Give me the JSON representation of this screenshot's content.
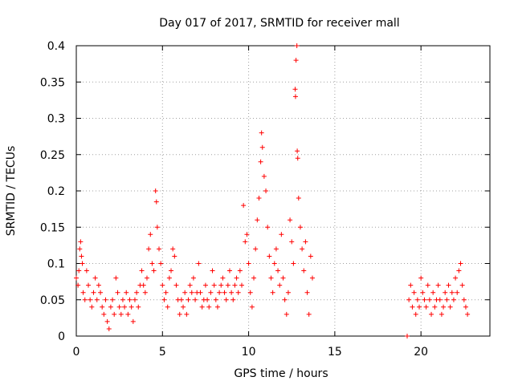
{
  "chart_data": {
    "type": "scatter",
    "title": "Day 017 of 2017, SRMTID for receiver mall",
    "xlabel": "GPS time / hours",
    "ylabel": "SRMTID / TECUs",
    "xlim": [
      0,
      24
    ],
    "ylim": [
      0,
      0.4
    ],
    "x_ticks": [
      0,
      5,
      10,
      15,
      20
    ],
    "y_ticks": [
      0,
      0.05,
      0.1,
      0.15,
      0.2,
      0.25,
      0.3,
      0.35,
      0.4
    ],
    "x_tick_labels": [
      "0",
      "5",
      "10",
      "15",
      "20"
    ],
    "y_tick_labels": [
      "0",
      "0.05",
      "0.1",
      "0.15",
      "0.2",
      "0.25",
      "0.3",
      "0.35",
      "0.4"
    ],
    "grid": true,
    "marker": "+",
    "color": "#ff0000",
    "series": [
      {
        "name": "SRMTID",
        "points": [
          [
            0.0,
            0.08
          ],
          [
            0.1,
            0.07
          ],
          [
            0.15,
            0.09
          ],
          [
            0.2,
            0.12
          ],
          [
            0.25,
            0.13
          ],
          [
            0.3,
            0.11
          ],
          [
            0.35,
            0.1
          ],
          [
            0.4,
            0.06
          ],
          [
            0.5,
            0.05
          ],
          [
            0.6,
            0.09
          ],
          [
            0.7,
            0.07
          ],
          [
            0.8,
            0.05
          ],
          [
            0.9,
            0.04
          ],
          [
            1.0,
            0.06
          ],
          [
            1.1,
            0.08
          ],
          [
            1.2,
            0.05
          ],
          [
            1.3,
            0.07
          ],
          [
            1.4,
            0.06
          ],
          [
            1.5,
            0.04
          ],
          [
            1.6,
            0.03
          ],
          [
            1.7,
            0.05
          ],
          [
            1.8,
            0.02
          ],
          [
            1.9,
            0.01
          ],
          [
            2.0,
            0.04
          ],
          [
            2.1,
            0.05
          ],
          [
            2.2,
            0.03
          ],
          [
            2.3,
            0.08
          ],
          [
            2.4,
            0.06
          ],
          [
            2.5,
            0.04
          ],
          [
            2.6,
            0.03
          ],
          [
            2.7,
            0.05
          ],
          [
            2.8,
            0.04
          ],
          [
            2.9,
            0.06
          ],
          [
            3.0,
            0.03
          ],
          [
            3.1,
            0.05
          ],
          [
            3.2,
            0.04
          ],
          [
            3.3,
            0.02
          ],
          [
            3.4,
            0.05
          ],
          [
            3.5,
            0.06
          ],
          [
            3.6,
            0.04
          ],
          [
            3.7,
            0.07
          ],
          [
            3.8,
            0.09
          ],
          [
            3.9,
            0.07
          ],
          [
            4.0,
            0.06
          ],
          [
            4.1,
            0.08
          ],
          [
            4.2,
            0.12
          ],
          [
            4.3,
            0.14
          ],
          [
            4.4,
            0.1
          ],
          [
            4.5,
            0.09
          ],
          [
            4.6,
            0.2
          ],
          [
            4.65,
            0.185
          ],
          [
            4.7,
            0.15
          ],
          [
            4.8,
            0.12
          ],
          [
            4.9,
            0.1
          ],
          [
            5.0,
            0.07
          ],
          [
            5.1,
            0.05
          ],
          [
            5.2,
            0.06
          ],
          [
            5.3,
            0.04
          ],
          [
            5.4,
            0.08
          ],
          [
            5.5,
            0.09
          ],
          [
            5.6,
            0.12
          ],
          [
            5.7,
            0.11
          ],
          [
            5.8,
            0.07
          ],
          [
            5.9,
            0.05
          ],
          [
            6.0,
            0.03
          ],
          [
            6.1,
            0.05
          ],
          [
            6.2,
            0.04
          ],
          [
            6.3,
            0.06
          ],
          [
            6.4,
            0.03
          ],
          [
            6.5,
            0.05
          ],
          [
            6.6,
            0.07
          ],
          [
            6.7,
            0.06
          ],
          [
            6.8,
            0.08
          ],
          [
            6.9,
            0.05
          ],
          [
            7.0,
            0.06
          ],
          [
            7.1,
            0.1
          ],
          [
            7.2,
            0.06
          ],
          [
            7.3,
            0.04
          ],
          [
            7.4,
            0.05
          ],
          [
            7.5,
            0.07
          ],
          [
            7.6,
            0.05
          ],
          [
            7.7,
            0.04
          ],
          [
            7.8,
            0.06
          ],
          [
            7.9,
            0.09
          ],
          [
            8.0,
            0.07
          ],
          [
            8.1,
            0.05
          ],
          [
            8.2,
            0.04
          ],
          [
            8.3,
            0.06
          ],
          [
            8.4,
            0.07
          ],
          [
            8.5,
            0.08
          ],
          [
            8.6,
            0.06
          ],
          [
            8.7,
            0.05
          ],
          [
            8.8,
            0.07
          ],
          [
            8.9,
            0.09
          ],
          [
            9.0,
            0.06
          ],
          [
            9.1,
            0.05
          ],
          [
            9.2,
            0.07
          ],
          [
            9.3,
            0.08
          ],
          [
            9.4,
            0.06
          ],
          [
            9.5,
            0.09
          ],
          [
            9.6,
            0.07
          ],
          [
            9.7,
            0.18
          ],
          [
            9.8,
            0.13
          ],
          [
            9.9,
            0.14
          ],
          [
            10.0,
            0.1
          ],
          [
            10.1,
            0.06
          ],
          [
            10.2,
            0.04
          ],
          [
            10.3,
            0.08
          ],
          [
            10.4,
            0.12
          ],
          [
            10.5,
            0.16
          ],
          [
            10.6,
            0.19
          ],
          [
            10.7,
            0.24
          ],
          [
            10.75,
            0.28
          ],
          [
            10.8,
            0.26
          ],
          [
            10.9,
            0.22
          ],
          [
            11.0,
            0.2
          ],
          [
            11.1,
            0.15
          ],
          [
            11.2,
            0.11
          ],
          [
            11.3,
            0.08
          ],
          [
            11.4,
            0.06
          ],
          [
            11.5,
            0.1
          ],
          [
            11.6,
            0.12
          ],
          [
            11.7,
            0.09
          ],
          [
            11.8,
            0.07
          ],
          [
            11.9,
            0.14
          ],
          [
            12.0,
            0.08
          ],
          [
            12.1,
            0.05
          ],
          [
            12.2,
            0.03
          ],
          [
            12.3,
            0.06
          ],
          [
            12.4,
            0.16
          ],
          [
            12.5,
            0.13
          ],
          [
            12.6,
            0.1
          ],
          [
            12.7,
            0.34
          ],
          [
            12.72,
            0.33
          ],
          [
            12.75,
            0.38
          ],
          [
            12.8,
            0.4
          ],
          [
            12.82,
            0.255
          ],
          [
            12.85,
            0.245
          ],
          [
            12.9,
            0.19
          ],
          [
            13.0,
            0.15
          ],
          [
            13.1,
            0.12
          ],
          [
            13.2,
            0.09
          ],
          [
            13.3,
            0.13
          ],
          [
            13.4,
            0.06
          ],
          [
            13.5,
            0.03
          ],
          [
            13.6,
            0.11
          ],
          [
            13.7,
            0.08
          ],
          [
            19.2,
            0.0
          ],
          [
            19.3,
            0.05
          ],
          [
            19.4,
            0.07
          ],
          [
            19.5,
            0.04
          ],
          [
            19.6,
            0.06
          ],
          [
            19.7,
            0.03
          ],
          [
            19.8,
            0.05
          ],
          [
            19.9,
            0.04
          ],
          [
            20.0,
            0.08
          ],
          [
            20.1,
            0.06
          ],
          [
            20.2,
            0.05
          ],
          [
            20.3,
            0.04
          ],
          [
            20.4,
            0.07
          ],
          [
            20.5,
            0.05
          ],
          [
            20.6,
            0.03
          ],
          [
            20.7,
            0.06
          ],
          [
            20.8,
            0.04
          ],
          [
            20.9,
            0.05
          ],
          [
            21.0,
            0.07
          ],
          [
            21.1,
            0.05
          ],
          [
            21.2,
            0.03
          ],
          [
            21.3,
            0.04
          ],
          [
            21.4,
            0.06
          ],
          [
            21.5,
            0.05
          ],
          [
            21.6,
            0.07
          ],
          [
            21.7,
            0.04
          ],
          [
            21.8,
            0.06
          ],
          [
            21.9,
            0.05
          ],
          [
            22.0,
            0.08
          ],
          [
            22.1,
            0.06
          ],
          [
            22.2,
            0.09
          ],
          [
            22.3,
            0.1
          ],
          [
            22.4,
            0.07
          ],
          [
            22.5,
            0.05
          ],
          [
            22.6,
            0.04
          ],
          [
            22.7,
            0.03
          ]
        ]
      }
    ]
  }
}
